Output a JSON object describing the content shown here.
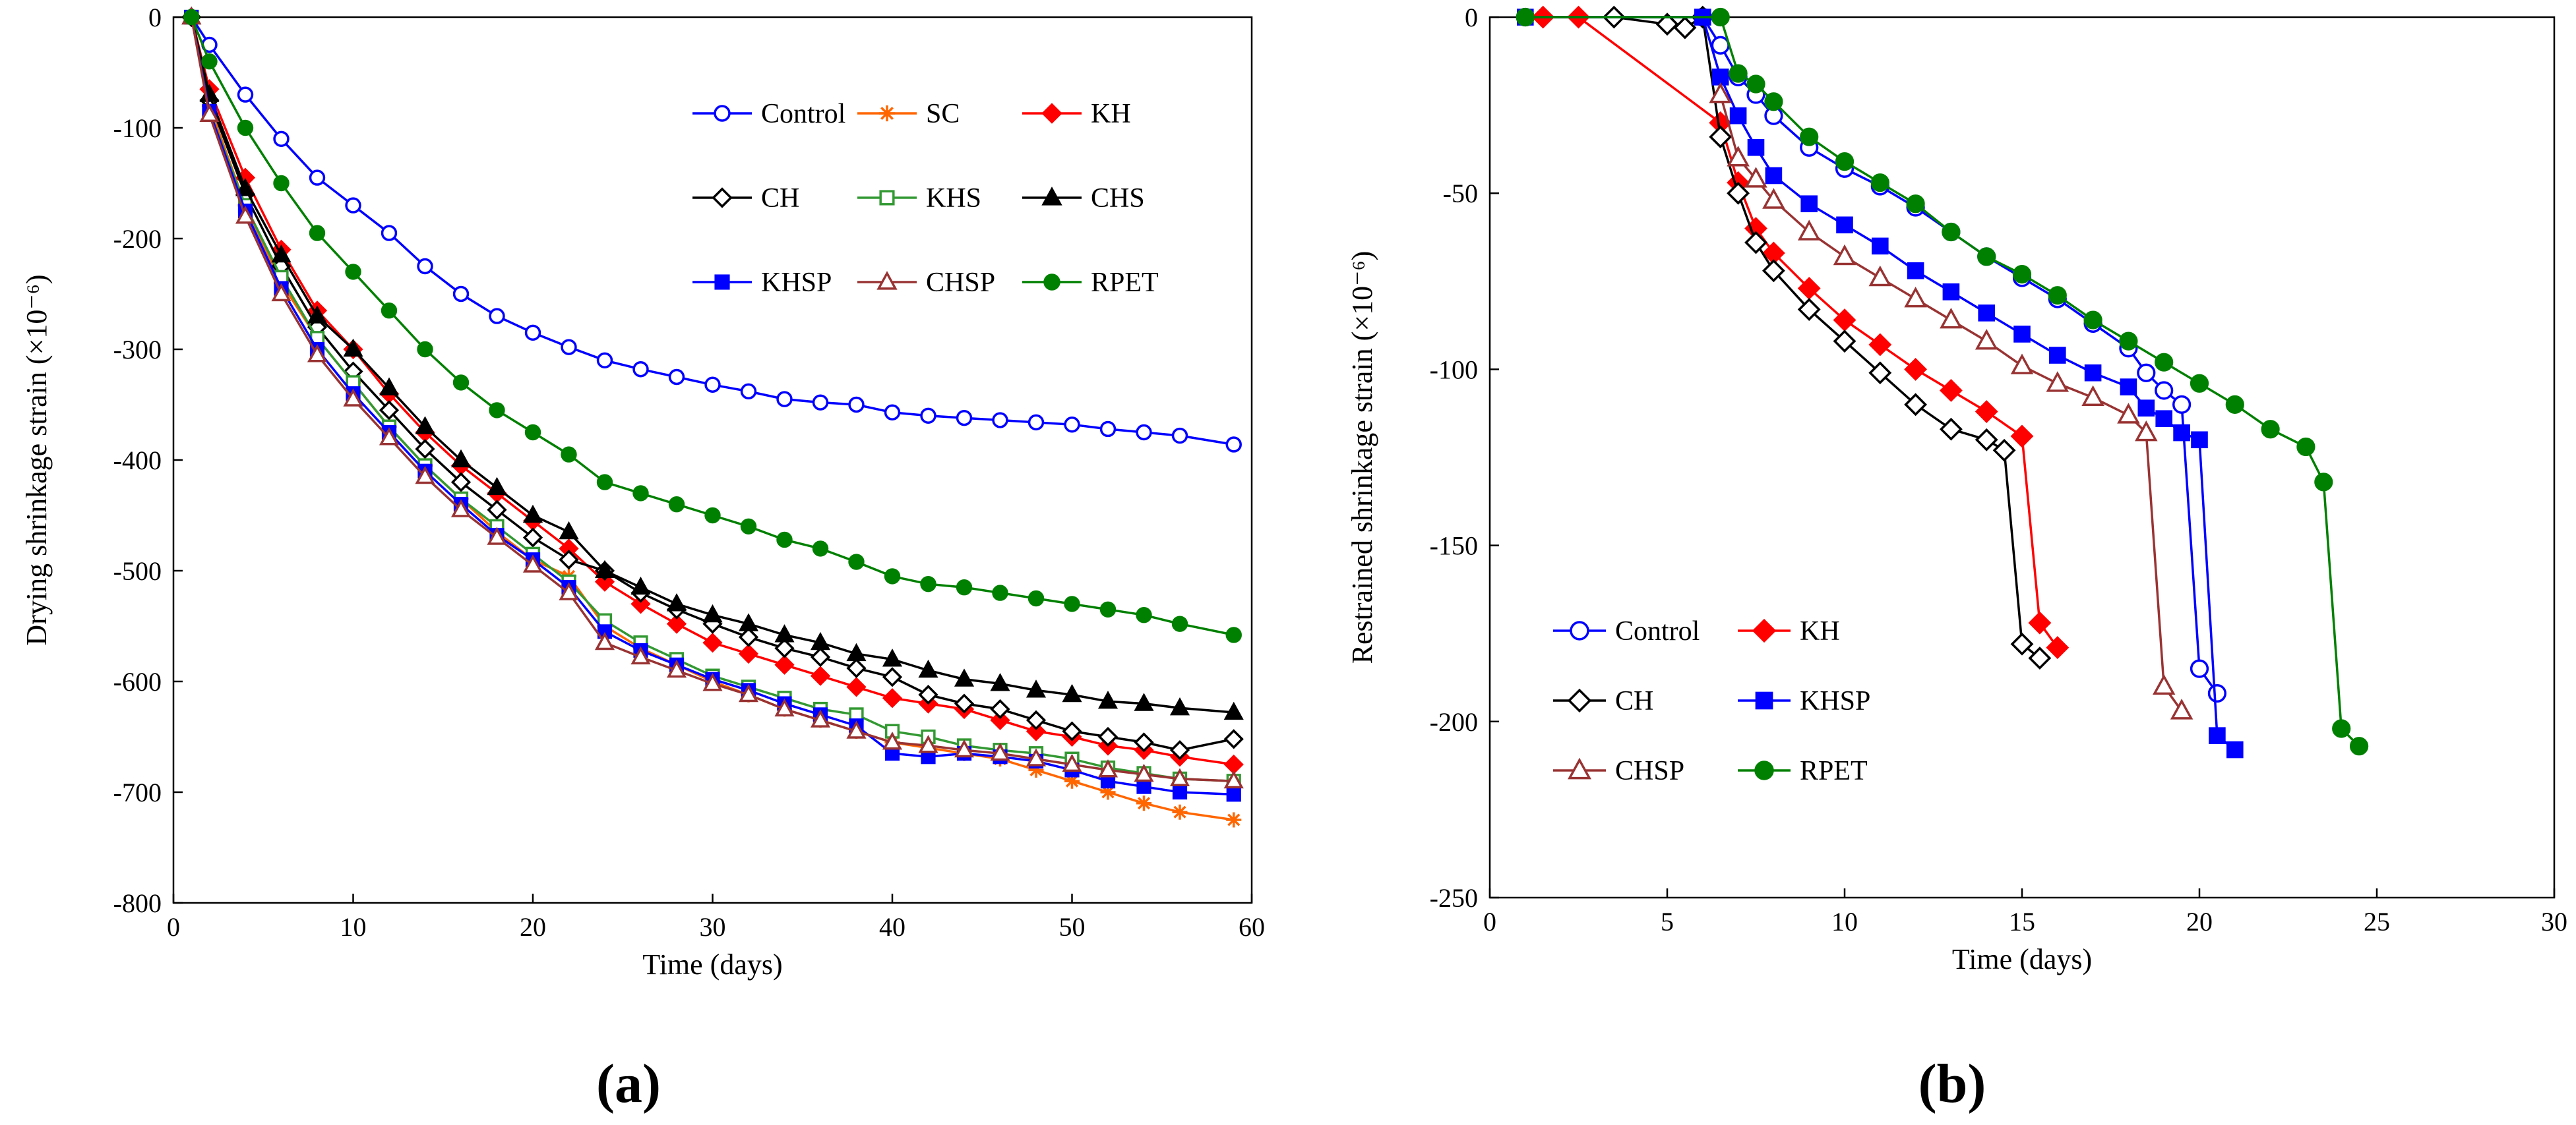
{
  "chart_data": [
    {
      "panel": "(a)",
      "type": "line",
      "title": "",
      "xlabel": "Time (days)",
      "ylabel": "Drying shrinkage strain (×10⁻⁶)",
      "xlim": [
        0,
        60
      ],
      "ylim": [
        -800,
        0
      ],
      "xticks": [
        "0",
        "10",
        "20",
        "30",
        "40",
        "50",
        "60"
      ],
      "yticks": [
        "0",
        "-100",
        "-200",
        "-300",
        "-400",
        "-500",
        "-600",
        "-700",
        "-800"
      ],
      "grid": false,
      "legend_position": "top-right",
      "series": [
        {
          "name": "Control",
          "color": "#0000ff",
          "marker": "circle-open",
          "x": [
            1,
            2,
            4,
            6,
            8,
            10,
            12,
            14,
            16,
            18,
            20,
            22,
            24,
            26,
            28,
            30,
            32,
            34,
            36,
            38,
            40,
            42,
            44,
            46,
            48,
            50,
            52,
            54,
            56,
            59
          ],
          "y": [
            0,
            -25,
            -70,
            -110,
            -145,
            -170,
            -195,
            -225,
            -250,
            -270,
            -285,
            -298,
            -310,
            -318,
            -325,
            -332,
            -338,
            -345,
            -348,
            -350,
            -357,
            -360,
            -362,
            -364,
            -366,
            -368,
            -372,
            -375,
            -378,
            -386
          ]
        },
        {
          "name": "SC",
          "color": "#ff6600",
          "marker": "asterisk",
          "x": [
            1,
            2,
            4,
            6,
            8,
            10,
            12,
            14,
            16,
            18,
            20,
            22,
            24,
            26,
            28,
            30,
            32,
            34,
            36,
            38,
            40,
            42,
            44,
            46,
            48,
            50,
            52,
            54,
            56,
            59
          ],
          "y": [
            0,
            -80,
            -170,
            -240,
            -290,
            -330,
            -370,
            -405,
            -435,
            -465,
            -490,
            -505,
            -550,
            -570,
            -585,
            -600,
            -612,
            -625,
            -635,
            -645,
            -655,
            -660,
            -665,
            -670,
            -680,
            -690,
            -700,
            -710,
            -718,
            -725
          ]
        },
        {
          "name": "KH",
          "color": "#ff0000",
          "marker": "diamond-filled",
          "x": [
            1,
            2,
            4,
            6,
            8,
            10,
            12,
            14,
            16,
            18,
            20,
            22,
            24,
            26,
            28,
            30,
            32,
            34,
            36,
            38,
            40,
            42,
            44,
            46,
            48,
            50,
            52,
            54,
            56,
            59
          ],
          "y": [
            0,
            -65,
            -145,
            -210,
            -265,
            -300,
            -340,
            -375,
            -405,
            -430,
            -455,
            -480,
            -510,
            -530,
            -548,
            -565,
            -575,
            -585,
            -595,
            -605,
            -615,
            -620,
            -625,
            -635,
            -645,
            -650,
            -658,
            -662,
            -668,
            -675
          ]
        },
        {
          "name": "CH",
          "color": "#000000",
          "marker": "diamond-open",
          "x": [
            1,
            2,
            4,
            6,
            8,
            10,
            12,
            14,
            16,
            18,
            20,
            22,
            24,
            26,
            28,
            30,
            32,
            34,
            36,
            38,
            40,
            42,
            44,
            46,
            48,
            50,
            52,
            54,
            56,
            59
          ],
          "y": [
            0,
            -75,
            -160,
            -225,
            -280,
            -320,
            -355,
            -390,
            -420,
            -445,
            -470,
            -490,
            -500,
            -520,
            -535,
            -548,
            -560,
            -570,
            -578,
            -588,
            -596,
            -612,
            -620,
            -625,
            -635,
            -645,
            -650,
            -655,
            -662,
            -652
          ]
        },
        {
          "name": "KHS",
          "color": "#339933",
          "marker": "square-open",
          "x": [
            1,
            2,
            4,
            6,
            8,
            10,
            12,
            14,
            16,
            18,
            20,
            22,
            24,
            26,
            28,
            30,
            32,
            34,
            36,
            38,
            40,
            42,
            44,
            46,
            48,
            50,
            52,
            54,
            56,
            59
          ],
          "y": [
            0,
            -85,
            -170,
            -235,
            -290,
            -330,
            -370,
            -405,
            -435,
            -460,
            -485,
            -510,
            -545,
            -565,
            -580,
            -595,
            -605,
            -615,
            -625,
            -630,
            -645,
            -650,
            -658,
            -662,
            -665,
            -670,
            -678,
            -683,
            -688,
            -690
          ]
        },
        {
          "name": "CHS",
          "color": "#000000",
          "marker": "triangle-filled",
          "x": [
            1,
            2,
            4,
            6,
            8,
            10,
            12,
            14,
            16,
            18,
            20,
            22,
            24,
            26,
            28,
            30,
            32,
            34,
            36,
            38,
            40,
            42,
            44,
            46,
            48,
            50,
            52,
            54,
            56,
            59
          ],
          "y": [
            0,
            -70,
            -155,
            -215,
            -270,
            -300,
            -335,
            -370,
            -400,
            -425,
            -450,
            -465,
            -500,
            -515,
            -530,
            -540,
            -548,
            -558,
            -565,
            -575,
            -580,
            -590,
            -598,
            -602,
            -608,
            -612,
            -618,
            -620,
            -624,
            -628
          ]
        },
        {
          "name": "KHSP",
          "color": "#0000ff",
          "marker": "square-filled",
          "x": [
            1,
            2,
            4,
            6,
            8,
            10,
            12,
            14,
            16,
            18,
            20,
            22,
            24,
            26,
            28,
            30,
            32,
            34,
            36,
            38,
            40,
            42,
            44,
            46,
            48,
            50,
            52,
            54,
            56,
            59
          ],
          "y": [
            0,
            -85,
            -175,
            -245,
            -300,
            -340,
            -375,
            -410,
            -440,
            -468,
            -490,
            -515,
            -555,
            -572,
            -585,
            -598,
            -608,
            -620,
            -630,
            -640,
            -665,
            -668,
            -665,
            -668,
            -672,
            -680,
            -690,
            -695,
            -700,
            -702
          ]
        },
        {
          "name": "CHSP",
          "color": "#993333",
          "marker": "triangle-open",
          "x": [
            1,
            2,
            4,
            6,
            8,
            10,
            12,
            14,
            16,
            18,
            20,
            22,
            24,
            26,
            28,
            30,
            32,
            34,
            36,
            38,
            40,
            42,
            44,
            46,
            48,
            50,
            52,
            54,
            56,
            59
          ],
          "y": [
            0,
            -88,
            -180,
            -250,
            -305,
            -345,
            -380,
            -415,
            -445,
            -470,
            -495,
            -520,
            -565,
            -578,
            -590,
            -602,
            -612,
            -625,
            -635,
            -645,
            -655,
            -658,
            -662,
            -665,
            -670,
            -675,
            -680,
            -684,
            -688,
            -690
          ]
        },
        {
          "name": "RPET",
          "color": "#008000",
          "marker": "circle-filled",
          "x": [
            1,
            2,
            4,
            6,
            8,
            10,
            12,
            14,
            16,
            18,
            20,
            22,
            24,
            26,
            28,
            30,
            32,
            34,
            36,
            38,
            40,
            42,
            44,
            46,
            48,
            50,
            52,
            54,
            56,
            59
          ],
          "y": [
            0,
            -40,
            -100,
            -150,
            -195,
            -230,
            -265,
            -300,
            -330,
            -355,
            -375,
            -395,
            -420,
            -430,
            -440,
            -450,
            -460,
            -472,
            -480,
            -492,
            -505,
            -512,
            -515,
            -520,
            -525,
            -530,
            -535,
            -540,
            -548,
            -558
          ]
        }
      ]
    },
    {
      "panel": "(b)",
      "type": "line",
      "title": "",
      "xlabel": "Time (days)",
      "ylabel": "Restrained shrinkage strain (×10⁻⁶)",
      "xlim": [
        0,
        30
      ],
      "ylim": [
        -250,
        0
      ],
      "xticks": [
        "0",
        "5",
        "10",
        "15",
        "20",
        "25",
        "30"
      ],
      "yticks": [
        "0",
        "-50",
        "-100",
        "-150",
        "-200",
        "-250"
      ],
      "grid": false,
      "legend_position": "bottom-left",
      "series": [
        {
          "name": "Control",
          "color": "#0000ff",
          "marker": "circle-open",
          "x": [
            1,
            6,
            6.5,
            7,
            7.5,
            8,
            9,
            10,
            11,
            12,
            13,
            14,
            15,
            16,
            17,
            18,
            18.5,
            19,
            19.5,
            20,
            20.5
          ],
          "y": [
            0,
            0,
            -8,
            -17,
            -22,
            -28,
            -37,
            -43,
            -48,
            -54,
            -61,
            -68,
            -74,
            -80,
            -87,
            -94,
            -101,
            -106,
            -110,
            -185,
            -192
          ]
        },
        {
          "name": "KH",
          "color": "#ff0000",
          "marker": "diamond-filled",
          "x": [
            1.5,
            2.5,
            6.5,
            7,
            7.5,
            8,
            9,
            10,
            11,
            12,
            13,
            14,
            15,
            15.5,
            16
          ],
          "y": [
            0,
            0,
            -30,
            -47,
            -60,
            -67,
            -77,
            -86,
            -93,
            -100,
            -106,
            -112,
            -119,
            -172,
            -179
          ]
        },
        {
          "name": "CH",
          "color": "#000000",
          "marker": "diamond-open",
          "x": [
            3.5,
            5,
            5.5,
            6,
            6.5,
            7,
            7.5,
            8,
            9,
            10,
            11,
            12,
            13,
            14,
            14.5,
            15,
            15.5
          ],
          "y": [
            0,
            -2,
            -3,
            0,
            -34,
            -50,
            -64,
            -72,
            -83,
            -92,
            -101,
            -110,
            -117,
            -120,
            -123,
            -178,
            -182
          ]
        },
        {
          "name": "KHSP",
          "color": "#0000ff",
          "marker": "square-filled",
          "x": [
            1,
            6,
            6.5,
            7,
            7.5,
            8,
            9,
            10,
            11,
            12,
            13,
            14,
            15,
            16,
            17,
            18,
            18.5,
            19,
            19.5,
            20,
            20.5,
            21
          ],
          "y": [
            0,
            0,
            -17,
            -28,
            -37,
            -45,
            -53,
            -59,
            -65,
            -72,
            -78,
            -84,
            -90,
            -96,
            -101,
            -105,
            -111,
            -114,
            -118,
            -120,
            -204,
            -208
          ]
        },
        {
          "name": "CHSP",
          "color": "#993333",
          "marker": "triangle-open",
          "x": [
            6.5,
            7,
            7.5,
            8,
            9,
            10,
            11,
            12,
            13,
            14,
            15,
            16,
            17,
            18,
            18.5,
            19,
            19.5
          ],
          "y": [
            -22,
            -40,
            -46,
            -52,
            -61,
            -68,
            -74,
            -80,
            -86,
            -92,
            -99,
            -104,
            -108,
            -113,
            -118,
            -190,
            -197
          ]
        },
        {
          "name": "RPET",
          "color": "#008000",
          "marker": "circle-filled",
          "x": [
            1,
            6.5,
            7,
            7.5,
            8,
            9,
            10,
            11,
            12,
            13,
            14,
            15,
            16,
            17,
            18,
            19,
            20,
            21,
            22,
            23,
            23.5,
            24,
            24.5
          ],
          "y": [
            0,
            0,
            -16,
            -19,
            -24,
            -34,
            -41,
            -47,
            -53,
            -61,
            -68,
            -73,
            -79,
            -86,
            -92,
            -98,
            -104,
            -110,
            -117,
            -122,
            -132,
            -202,
            -207
          ]
        }
      ]
    }
  ],
  "panels": {
    "a": {
      "label_open": "(",
      "label_letter": "a",
      "label_close": ")"
    },
    "b": {
      "label_open": "(",
      "label_letter": "b",
      "label_close": ")"
    }
  }
}
